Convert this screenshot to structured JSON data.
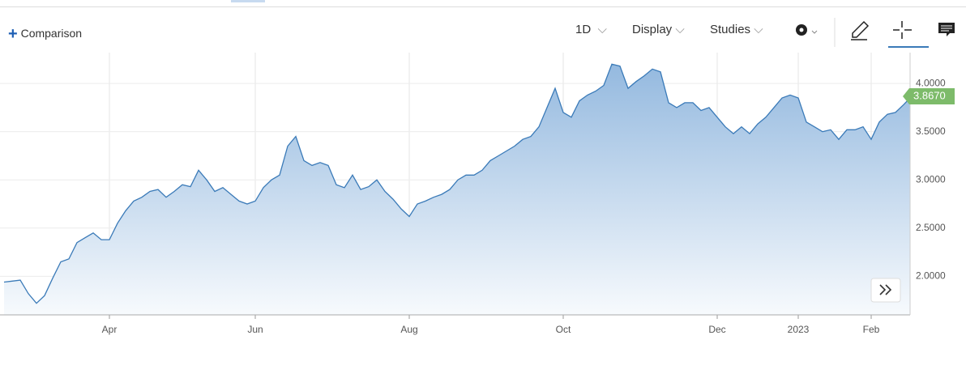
{
  "toolbar": {
    "comparison": "Comparison",
    "interval": "1D",
    "display": "Display",
    "studies": "Studies"
  },
  "chart_data": {
    "type": "area",
    "color": "#3a7ab8",
    "categories": [
      null,
      null,
      null,
      null,
      null,
      null,
      null,
      null,
      null,
      null,
      null,
      null,
      null,
      "Apr",
      null,
      null,
      null,
      null,
      null,
      null,
      null,
      null,
      null,
      null,
      null,
      null,
      null,
      null,
      null,
      null,
      null,
      "Jun",
      null,
      null,
      null,
      null,
      null,
      null,
      null,
      null,
      null,
      null,
      null,
      null,
      null,
      null,
      null,
      null,
      null,
      null,
      "Aug",
      null,
      null,
      null,
      null,
      null,
      null,
      null,
      null,
      null,
      null,
      null,
      null,
      null,
      null,
      null,
      null,
      null,
      null,
      "Oct",
      null,
      null,
      null,
      null,
      null,
      null,
      null,
      null,
      null,
      null,
      null,
      null,
      null,
      null,
      null,
      null,
      null,
      null,
      "Dec",
      null,
      null,
      null,
      null,
      null,
      null,
      null,
      null,
      null,
      "2023",
      null,
      null,
      null,
      null,
      null,
      null,
      null,
      null,
      "Feb",
      null,
      null,
      null,
      null,
      null
    ],
    "values": [
      1.94,
      1.95,
      1.96,
      1.82,
      1.72,
      1.8,
      1.98,
      2.15,
      2.18,
      2.35,
      2.4,
      2.45,
      2.38,
      2.38,
      2.55,
      2.68,
      2.78,
      2.82,
      2.88,
      2.9,
      2.82,
      2.88,
      2.95,
      2.93,
      3.1,
      3.0,
      2.88,
      2.92,
      2.85,
      2.78,
      2.75,
      2.78,
      2.92,
      3.0,
      3.05,
      3.35,
      3.45,
      3.2,
      3.15,
      3.18,
      3.15,
      2.95,
      2.92,
      3.05,
      2.9,
      2.93,
      3.0,
      2.88,
      2.8,
      2.7,
      2.62,
      2.75,
      2.78,
      2.82,
      2.85,
      2.9,
      3.0,
      3.05,
      3.05,
      3.1,
      3.2,
      3.25,
      3.3,
      3.35,
      3.42,
      3.45,
      3.55,
      3.75,
      3.95,
      3.7,
      3.65,
      3.82,
      3.88,
      3.92,
      3.98,
      4.2,
      4.18,
      3.95,
      4.02,
      4.08,
      4.15,
      4.12,
      3.8,
      3.75,
      3.8,
      3.8,
      3.72,
      3.75,
      3.65,
      3.55,
      3.48,
      3.55,
      3.48,
      3.58,
      3.65,
      3.75,
      3.85,
      3.88,
      3.85,
      3.6,
      3.55,
      3.5,
      3.52,
      3.42,
      3.52,
      3.52,
      3.55,
      3.42,
      3.6,
      3.68,
      3.7,
      3.78,
      3.867
    ],
    "value_labels": [
      null,
      null,
      null,
      null,
      null,
      null,
      null,
      null,
      null,
      null,
      null,
      null,
      null,
      null,
      null,
      null,
      null,
      null,
      null,
      null,
      null,
      null,
      null,
      null,
      null,
      null,
      null,
      null,
      null,
      null,
      null,
      null,
      null,
      null,
      null,
      null,
      null,
      null,
      null,
      null,
      null,
      null,
      null,
      null,
      null,
      null,
      null,
      null,
      null,
      null,
      null,
      null,
      null,
      null,
      null,
      null,
      null,
      null,
      null,
      null,
      null,
      null,
      null,
      null,
      null,
      null,
      null,
      null,
      null,
      null,
      null,
      null,
      null,
      null,
      null,
      null,
      null,
      null,
      null,
      null,
      null,
      null,
      null,
      null,
      null,
      null,
      null,
      null,
      null,
      null,
      null,
      null,
      null,
      null,
      null,
      null,
      null,
      null,
      null,
      null,
      null,
      null,
      null,
      null,
      null,
      null,
      null,
      null,
      null,
      null,
      null,
      null,
      "3.8670"
    ],
    "ylim": [
      1.6,
      4.32
    ],
    "yticks": [
      {
        "value": 2,
        "label": "2.0000"
      },
      {
        "value": 2.5,
        "label": "2.5000"
      },
      {
        "value": 3,
        "label": "3.0000"
      },
      {
        "value": 3.5,
        "label": "3.5000"
      },
      {
        "value": 4,
        "label": "4.0000"
      }
    ],
    "grid": true
  }
}
